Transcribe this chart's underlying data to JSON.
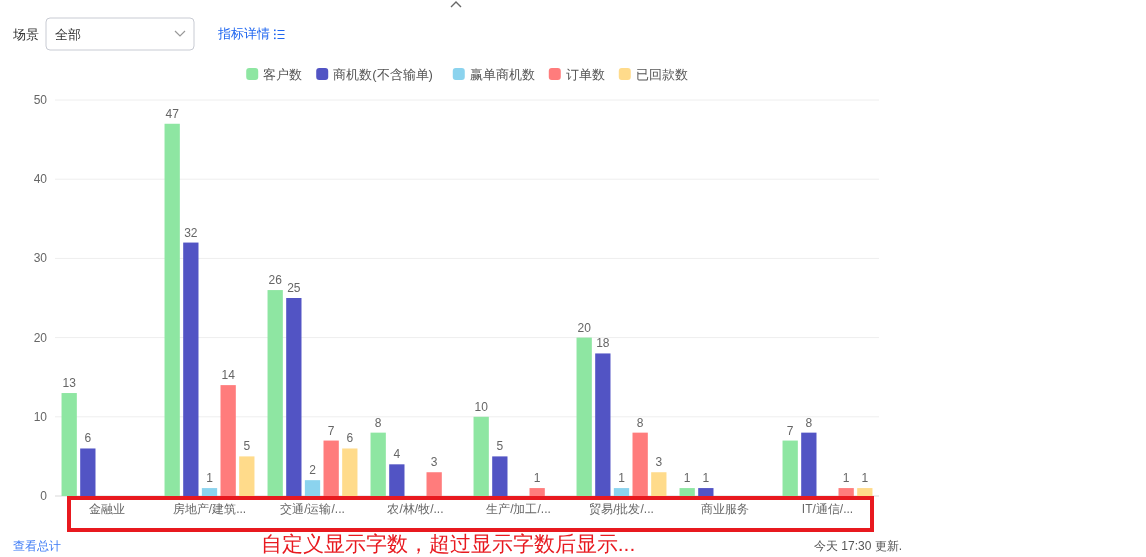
{
  "chart_data": {
    "type": "bar",
    "categories": [
      "金融业",
      "房地产/建筑...",
      "交通/运输/...",
      "农/林/牧/...",
      "生产/加工/...",
      "贸易/批发/...",
      "商业服务",
      "IT/通信/..."
    ],
    "series": [
      {
        "name": "客户数",
        "color": "#8ee6a2",
        "values": [
          13,
          47,
          26,
          8,
          10,
          20,
          1,
          7
        ]
      },
      {
        "name": "商机数(不含输单)",
        "color": "#5254c4",
        "values": [
          6,
          32,
          25,
          4,
          5,
          18,
          1,
          8
        ]
      },
      {
        "name": "赢单商机数",
        "color": "#8bd3ee",
        "values": [
          null,
          1,
          2,
          null,
          null,
          1,
          null,
          null
        ]
      },
      {
        "name": "订单数",
        "color": "#ff7c7c",
        "values": [
          null,
          14,
          7,
          3,
          1,
          8,
          null,
          1
        ]
      },
      {
        "name": "已回款数",
        "color": "#ffdb8b",
        "values": [
          null,
          5,
          6,
          null,
          null,
          3,
          null,
          1
        ]
      }
    ],
    "ylim": [
      0,
      50
    ],
    "yticks": [
      0,
      10,
      20,
      30,
      40,
      50
    ],
    "grid": "y",
    "legend": "top",
    "data_labels": true,
    "annotations": [
      "场景",
      "全部",
      "指标详情",
      "查看总计",
      "今天 17:30 更新.",
      "自定义显示字数，超过显示字数后显示..."
    ]
  }
}
